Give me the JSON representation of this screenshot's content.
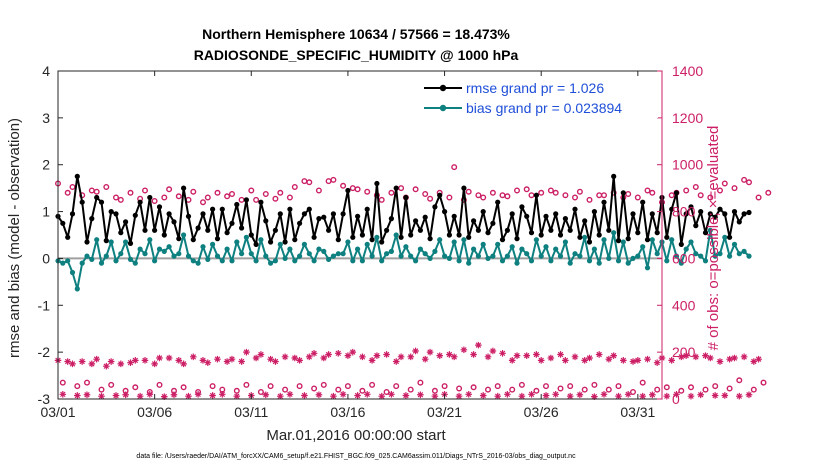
{
  "title_line1": "Northern Hemisphere 10634 / 57566 = 18.473%",
  "title_line2": "RADIOSONDE_SPECIFIC_HUMIDITY @ 1000 hPa",
  "colors": {
    "rmse": "#000000",
    "bias": "#0e8080",
    "obs": "#cc1f66",
    "zero_line": "#a0a0a0",
    "legend_text": "#1f4fd8"
  },
  "chart_data": {
    "type": "line",
    "title": "Northern Hemisphere 10634 / 57566 = 18.473% — RADIOSONDE_SPECIFIC_HUMIDITY @ 1000 hPa",
    "xlabel": "Mar.01,2016 00:00:00 start",
    "ylabel_left": "rmse and bias (model - observation)",
    "ylabel_right": "# of obs: o=possible; ×=evaluated",
    "ylim_left": [
      -3,
      4
    ],
    "ylim_right": [
      0,
      1400
    ],
    "xlim_days": [
      0,
      31.25
    ],
    "x_ticks": [
      0,
      5,
      10,
      15,
      20,
      25,
      30
    ],
    "x_tick_labels": [
      "03/01",
      "03/06",
      "03/11",
      "03/16",
      "03/21",
      "03/26",
      "03/31"
    ],
    "y_left_ticks": [
      -3,
      -2,
      -1,
      0,
      1,
      2,
      3,
      4
    ],
    "y_left_tick_labels": [
      "-3",
      "-2",
      "-1",
      "0",
      "1",
      "2",
      "3",
      "4"
    ],
    "y_right_ticks": [
      0,
      200,
      400,
      600,
      800,
      1000,
      1200,
      1400
    ],
    "y_right_tick_labels": [
      "0",
      "200",
      "400",
      "600",
      "800",
      "1000",
      "1200",
      "1400"
    ],
    "x_step_days": 0.25,
    "legend": [
      {
        "name": "rmse",
        "label": "rmse grand pr = 1.026"
      },
      {
        "name": "bias",
        "label": "bias grand pr = 0.023894"
      }
    ],
    "series": [
      {
        "name": "rmse",
        "axis": "left",
        "values": [
          0.9,
          0.75,
          0.45,
          0.95,
          1.75,
          1.2,
          0.35,
          0.85,
          1.3,
          1.2,
          0.38,
          1.0,
          0.95,
          0.55,
          0.78,
          0.32,
          0.92,
          1.2,
          0.6,
          1.3,
          0.6,
          1.1,
          0.5,
          0.95,
          0.78,
          0.42,
          1.5,
          0.9,
          0.4,
          0.65,
          0.95,
          0.6,
          1.05,
          0.42,
          1.05,
          0.55,
          0.75,
          1.15,
          0.65,
          1.25,
          0.5,
          0.3,
          1.2,
          0.8,
          0.35,
          0.6,
          0.95,
          0.35,
          1.05,
          0.4,
          0.75,
          0.95,
          1.05,
          0.45,
          0.85,
          0.88,
          0.6,
          0.95,
          0.4,
          0.95,
          1.45,
          0.45,
          0.9,
          0.5,
          1.05,
          0.4,
          1.6,
          0.35,
          0.6,
          0.85,
          1.5,
          0.45,
          1.3,
          0.5,
          0.8,
          0.6,
          0.88,
          0.42,
          1.1,
          1.35,
          1.0,
          0.5,
          0.9,
          0.5,
          1.5,
          0.45,
          0.8,
          0.6,
          1.0,
          0.55,
          0.75,
          1.2,
          0.4,
          0.6,
          0.95,
          0.42,
          1.1,
          0.9,
          0.55,
          1.35,
          0.5,
          0.9,
          0.6,
          0.95,
          0.5,
          0.85,
          0.6,
          1.05,
          0.45,
          0.8,
          0.35,
          1.0,
          0.5,
          1.2,
          0.6,
          1.75,
          0.38,
          1.4,
          0.42,
          0.95,
          0.55,
          1.2,
          0.4,
          0.95,
          0.55,
          1.3,
          0.45,
          1.05,
          1.4,
          0.3,
          0.95,
          1.1,
          0.7,
          1.0,
          0.55,
          0.95,
          0.88,
          1.05,
          0.95,
          0.45,
          1.0,
          0.78,
          0.95,
          0.98
        ],
        "marker": "dot"
      },
      {
        "name": "bias",
        "axis": "left",
        "values": [
          -0.05,
          -0.1,
          -0.05,
          -0.3,
          -0.65,
          -0.1,
          0.05,
          -0.02,
          0.4,
          -0.1,
          0.05,
          0.35,
          -0.05,
          0.1,
          0.35,
          -0.02,
          -0.1,
          0.2,
          0.1,
          0.4,
          -0.05,
          0.2,
          0.15,
          0.25,
          0.05,
          0.1,
          0.5,
          0.05,
          -0.05,
          -0.1,
          0.25,
          -0.02,
          0.3,
          0.05,
          -0.05,
          0.2,
          -0.05,
          0.35,
          0.1,
          0.45,
          0.1,
          -0.05,
          0.4,
          0.05,
          -0.1,
          -0.05,
          0.3,
          0.0,
          0.2,
          -0.05,
          0.05,
          0.3,
          0.1,
          -0.05,
          0.2,
          0.15,
          -0.02,
          0.05,
          0.1,
          0.1,
          0.35,
          -0.05,
          0.2,
          -0.05,
          0.3,
          0.05,
          0.45,
          -0.05,
          0.1,
          0.15,
          0.5,
          0.05,
          0.25,
          0.05,
          -0.05,
          0.2,
          0.1,
          0.0,
          0.15,
          0.4,
          0.05,
          0.0,
          0.35,
          -0.05,
          0.4,
          -0.1,
          0.2,
          0.05,
          0.3,
          0.0,
          0.05,
          0.3,
          -0.05,
          0.05,
          0.25,
          -0.1,
          0.2,
          0.1,
          -0.05,
          0.4,
          0.05,
          0.25,
          -0.05,
          0.2,
          0.05,
          0.35,
          -0.1,
          0.1,
          0.05,
          0.45,
          -0.05,
          0.2,
          -0.1,
          0.4,
          0.0,
          0.55,
          -0.05,
          0.35,
          -0.1,
          0.0,
          0.05,
          0.25,
          -0.2,
          0.4,
          0.1,
          0.35,
          -0.05,
          0.4,
          0.05,
          -0.1,
          0.2,
          0.35,
          0.1,
          0.05,
          -0.05,
          0.6,
          0.05,
          0.1,
          0.45,
          0.05,
          0.3,
          0.1,
          0.15,
          0.05
        ],
        "marker": "dot"
      },
      {
        "name": "obs_possible",
        "axis": "right",
        "marker": "circle",
        "values": [
          920,
          70,
          880,
          905,
          55,
          870,
          70,
          890,
          885,
          40,
          905,
          60,
          860,
          850,
          35,
          880,
          50,
          855,
          890,
          30,
          845,
          60,
          860,
          895,
          35,
          865,
          50,
          850,
          885,
          30,
          840,
          860,
          55,
          880,
          40,
          865,
          875,
          35,
          850,
          60,
          890,
          850,
          30,
          875,
          55,
          855,
          880,
          40,
          860,
          905,
          55,
          930,
          925,
          45,
          890,
          60,
          930,
          935,
          40,
          910,
          55,
          900,
          895,
          35,
          885,
          60,
          870,
          850,
          30,
          880,
          55,
          900,
          860,
          40,
          895,
          70,
          875,
          855,
          35,
          880,
          55,
          860,
          990,
          45,
          850,
          885,
          50,
          870,
          860,
          40,
          880,
          55,
          870,
          865,
          40,
          890,
          60,
          895,
          870,
          35,
          880,
          55,
          890,
          880,
          45,
          870,
          55,
          860,
          885,
          40,
          850,
          60,
          870,
          870,
          40,
          880,
          55,
          860,
          875,
          30,
          860,
          70,
          890,
          880,
          40,
          840,
          50,
          870,
          880,
          35,
          890,
          50,
          905,
          870,
          40,
          860,
          55,
          890,
          920,
          45,
          900,
          80,
          935,
          925,
          40,
          860,
          70,
          880
        ]
      },
      {
        "name": "obs_evaluated",
        "axis": "right",
        "marker": "asterisk",
        "values": [
          165,
          20,
          160,
          150,
          15,
          160,
          18,
          150,
          170,
          12,
          140,
          160,
          15,
          150,
          18,
          155,
          165,
          12,
          165,
          20,
          150,
          175,
          10,
          175,
          18,
          165,
          150,
          12,
          180,
          20,
          165,
          155,
          15,
          170,
          20,
          160,
          170,
          12,
          160,
          200,
          15,
          175,
          190,
          18,
          170,
          160,
          12,
          180,
          20,
          175,
          165,
          15,
          180,
          195,
          18,
          175,
          190,
          12,
          195,
          20,
          185,
          200,
          15,
          180,
          20,
          165,
          185,
          12,
          190,
          20,
          160,
          180,
          15,
          180,
          205,
          18,
          170,
          200,
          12,
          185,
          20,
          190,
          180,
          12,
          210,
          20,
          190,
          230,
          15,
          180,
          205,
          12,
          195,
          20,
          165,
          185,
          12,
          185,
          20,
          190,
          165,
          15,
          175,
          20,
          190,
          165,
          12,
          180,
          18,
          165,
          175,
          10,
          190,
          20,
          170,
          185,
          12,
          165,
          20,
          160,
          165,
          12,
          170,
          18,
          155,
          175,
          12,
          165,
          20,
          180,
          185,
          12,
          180,
          18,
          185,
          175,
          15,
          160,
          15,
          170,
          175,
          12,
          180,
          18,
          160,
          170
        ]
      }
    ]
  },
  "footnote": "data file: /Users/raeder/DAI/ATM_forcXX/CAM6_setup/f.e21.FHIST_BGC.f09_025.CAM6assim.011/Diags_NTrS_2016-03/obs_diag_output.nc"
}
